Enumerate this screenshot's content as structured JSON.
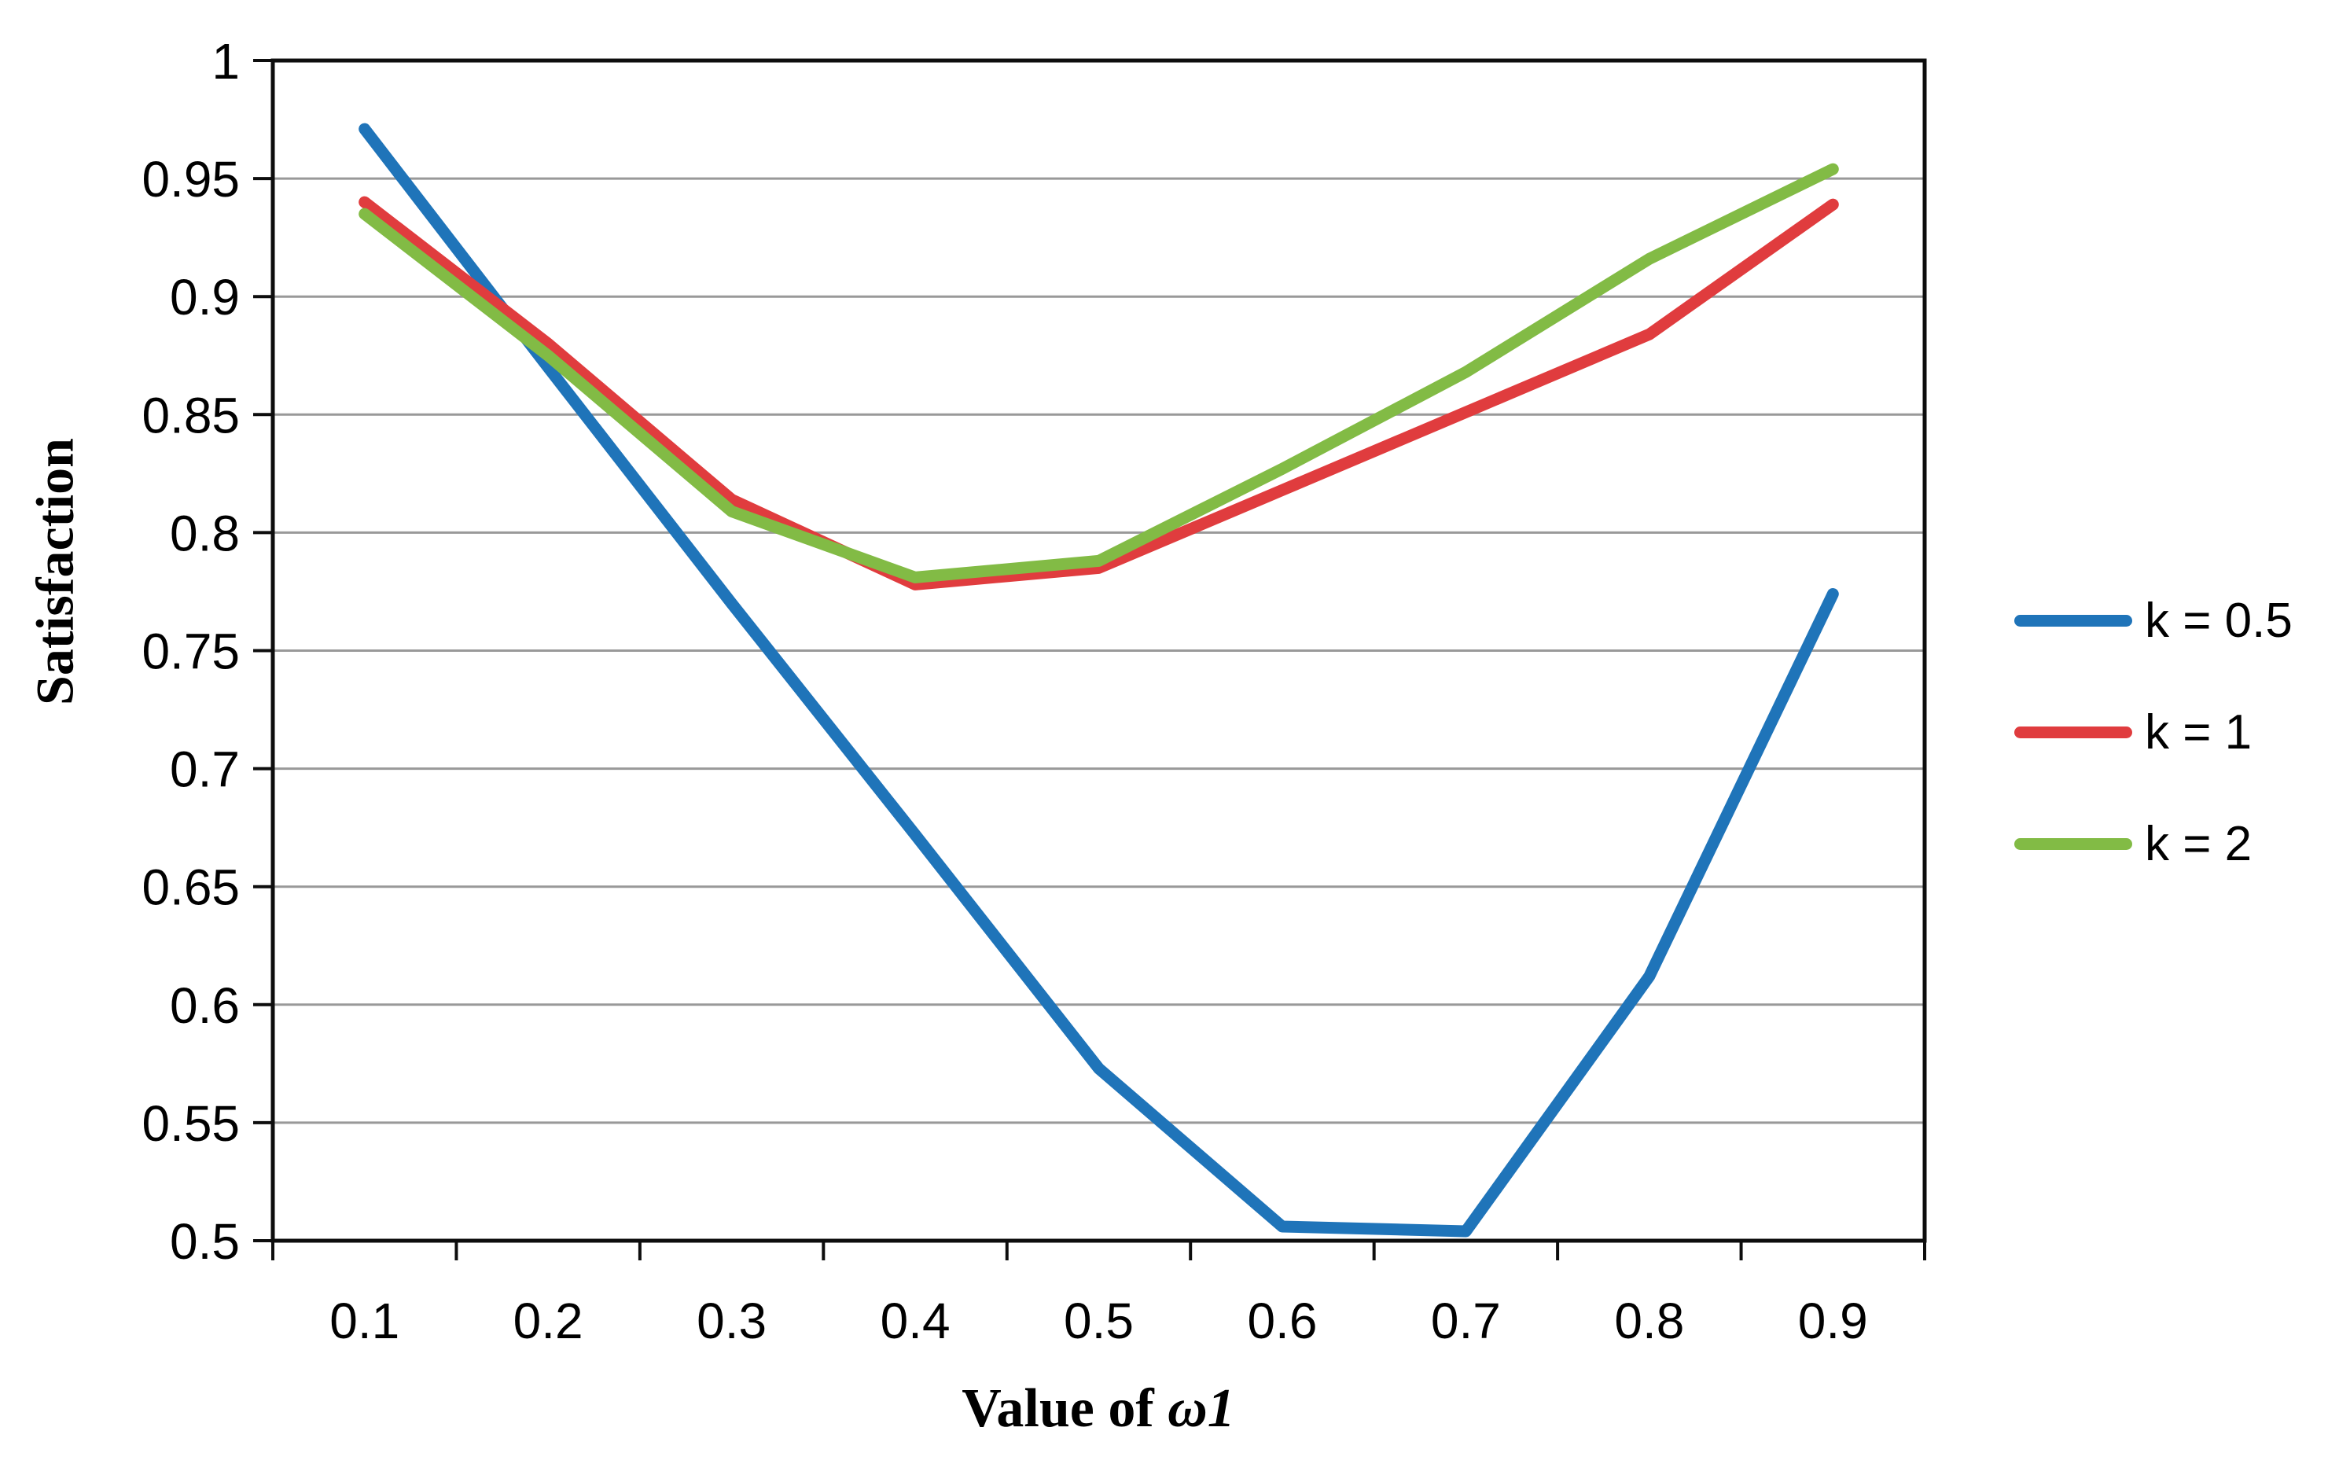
{
  "chart_data": {
    "type": "line",
    "title": "",
    "xlabel": "Value of ω1",
    "xlabel_prefix": "Value of ",
    "xlabel_italic_part": "ω1",
    "ylabel": "Satisfaction",
    "categories": [
      0.1,
      0.2,
      0.3,
      0.4,
      0.5,
      0.6,
      0.7,
      0.8,
      0.9
    ],
    "x_tick_labels": [
      "0.1",
      "0.2",
      "0.3",
      "0.4",
      "0.5",
      "0.6",
      "0.7",
      "0.8",
      "0.9"
    ],
    "y_tick_labels": [
      "0.5",
      "0.55",
      "0.6",
      "0.65",
      "0.7",
      "0.75",
      "0.8",
      "0.85",
      "0.9",
      "0.95",
      "1"
    ],
    "y_tick_values": [
      0.5,
      0.55,
      0.6,
      0.65,
      0.7,
      0.75,
      0.8,
      0.85,
      0.9,
      0.95,
      1.0
    ],
    "ylim": [
      0.5,
      1.0
    ],
    "y_tick_step": 0.05,
    "grid": "horizontal",
    "legend_position": "right",
    "series": [
      {
        "name": "k = 0.5",
        "color": "#1F74B9",
        "values": [
          0.971,
          0.87,
          0.77,
          0.672,
          0.573,
          0.506,
          0.504,
          0.612,
          0.774
        ]
      },
      {
        "name": "k = 1",
        "color": "#E03C3E",
        "values": [
          0.94,
          0.88,
          0.814,
          0.778,
          0.785,
          0.818,
          0.851,
          0.884,
          0.939
        ]
      },
      {
        "name": "k = 2",
        "color": "#82BB45",
        "values": [
          0.935,
          0.875,
          0.809,
          0.781,
          0.788,
          0.827,
          0.868,
          0.916,
          0.954
        ]
      }
    ]
  },
  "colors": {
    "background": "#FFFFFF",
    "gridline": "#999999",
    "axis_frame": "#0D0D0D",
    "tick_text": "#000000"
  }
}
